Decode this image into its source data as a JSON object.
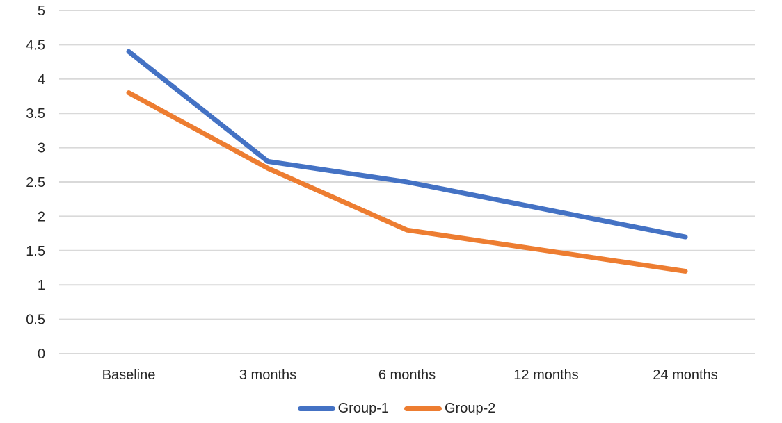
{
  "chart_data": {
    "type": "line",
    "title": "",
    "xlabel": "",
    "ylabel": "",
    "categories": [
      "Baseline",
      "3 months",
      "6 months",
      "12 months",
      "24 months"
    ],
    "series": [
      {
        "name": "Group-1",
        "color": "#4472C4",
        "values": [
          4.4,
          2.8,
          2.5,
          2.1,
          1.7
        ]
      },
      {
        "name": "Group-2",
        "color": "#ED7D31",
        "values": [
          3.8,
          2.7,
          1.8,
          1.5,
          1.2
        ]
      }
    ],
    "ylim": [
      0,
      5
    ],
    "yticks": [
      {
        "value": 0,
        "label": "0"
      },
      {
        "value": 0.5,
        "label": "0.5"
      },
      {
        "value": 1,
        "label": "1"
      },
      {
        "value": 1.5,
        "label": "1.5"
      },
      {
        "value": 2,
        "label": "2"
      },
      {
        "value": 2.5,
        "label": "2.5"
      },
      {
        "value": 3,
        "label": "3"
      },
      {
        "value": 3.5,
        "label": "3.5"
      },
      {
        "value": 4,
        "label": "4"
      },
      {
        "value": 4.5,
        "label": "4.5"
      },
      {
        "value": 5,
        "label": "5"
      }
    ],
    "grid": true,
    "legend_position": "bottom",
    "colors": {
      "gridline": "#D9D9D9",
      "axis_text": "#262626",
      "background": "#FFFFFF"
    }
  }
}
